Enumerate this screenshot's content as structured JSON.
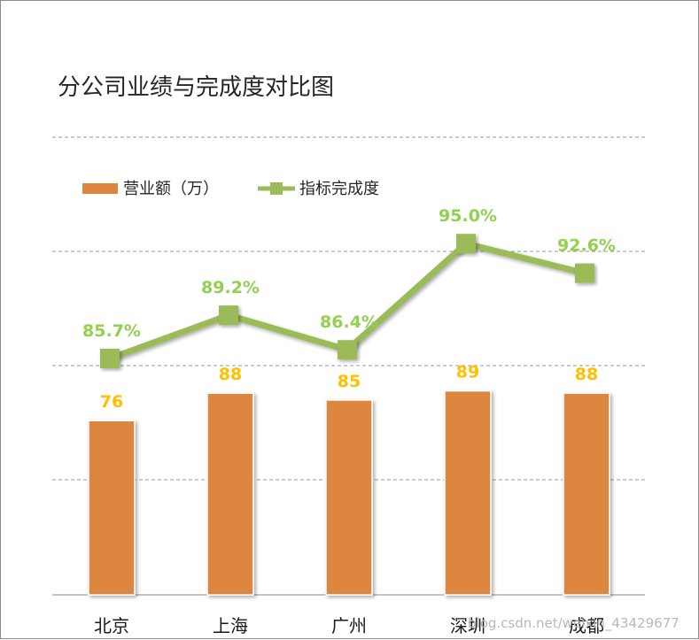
{
  "chart_data": {
    "type": "bar",
    "title": "分公司业绩与完成度对比图",
    "categories": [
      "北京",
      "上海",
      "广州",
      "深圳",
      "成都"
    ],
    "series": [
      {
        "name": "营业额（万）",
        "type": "bar",
        "values": [
          76,
          88,
          85,
          89,
          88
        ],
        "labels": [
          "76",
          "88",
          "85",
          "89",
          "88"
        ]
      },
      {
        "name": "指标完成度",
        "type": "line",
        "values": [
          85.7,
          89.2,
          86.4,
          95.0,
          92.6
        ],
        "labels": [
          "85.7%",
          "89.2%",
          "86.4%",
          "95.0%",
          "92.6%"
        ]
      }
    ],
    "legend_position": "top-left",
    "grid": true,
    "colors": {
      "bar": "#dc8641",
      "line": "#9bbb59",
      "bar_label": "#ffc000",
      "line_label": "#92d050",
      "grid": "#999999"
    }
  },
  "watermark": "blog.csdn.net/weixin_43429677"
}
